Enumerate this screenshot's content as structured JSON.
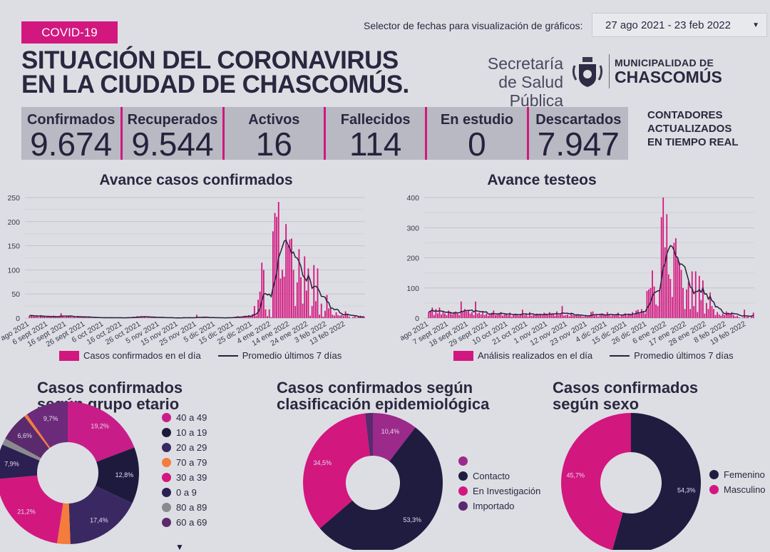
{
  "header": {
    "badge": "COVID-19",
    "title_line1": "SITUACIÓN DEL CORONAVIRUS",
    "title_line2": "EN LA CIUDAD DE CHASCOMÚS.",
    "date_selector_label": "Selector de fechas para visualización de gráficos:",
    "date_selector_value": "27 ago 2021 - 23 feb 2022",
    "secretaria_line1": "Secretaría",
    "secretaria_line2": "de Salud Pública",
    "muni_line1": "MUNICIPALIDAD DE",
    "muni_line2": "CHASCOMÚS"
  },
  "kpis": [
    {
      "label": "Confirmados",
      "value": "9.674"
    },
    {
      "label": "Recuperados",
      "value": "9.544"
    },
    {
      "label": "Activos",
      "value": "16"
    },
    {
      "label": "Fallecidos",
      "value": "114"
    },
    {
      "label": "En estudio",
      "value": "0"
    },
    {
      "label": "Descartados",
      "value": "7.947"
    }
  ],
  "counters_note": [
    "CONTADORES",
    "ACTUALIZADOS",
    "EN TIEMPO REAL"
  ],
  "colors": {
    "magenta": "#d2177f",
    "navy": "#1f1c40",
    "background": "#dddee3"
  },
  "chart_data": [
    {
      "type": "bar",
      "title": "Avance casos confirmados",
      "x_start": "27 ago 2021",
      "x_end": "23 feb 2022",
      "ylim": [
        0,
        250
      ],
      "yticks": [
        0,
        50,
        100,
        150,
        200,
        250
      ],
      "grid": true,
      "xtick_labels": [
        "ago 2021",
        "6 sept 2021",
        "16 sept 2021",
        "26 sept 2021",
        "6 oct 2021",
        "16 oct 2021",
        "26 oct 2021",
        "5 nov 2021",
        "15 nov 2021",
        "25 nov 2021",
        "5 dic 2021",
        "15 dic 2021",
        "25 dic 2021",
        "4 ene 2022",
        "14 ene 2022",
        "24 ene 2022",
        "3 feb 2022",
        "13 feb 2022"
      ],
      "xtick_step_days": 10,
      "legend": [
        "Casos confirmados en el día",
        "Promedio últimos 7 días"
      ],
      "legend_position": "bottom",
      "values": [
        5,
        6,
        4,
        3,
        5,
        2,
        6,
        4,
        3,
        2,
        4,
        3,
        2,
        5,
        3,
        2,
        4,
        10,
        3,
        2,
        4,
        3,
        5,
        2,
        3,
        1,
        4,
        2,
        3,
        2,
        3,
        1,
        2,
        1,
        0,
        1,
        2,
        0,
        1,
        1,
        0,
        1,
        0,
        2,
        1,
        0,
        1,
        0,
        1,
        1,
        0,
        1,
        0,
        2,
        1,
        1,
        3,
        2,
        4,
        3,
        4,
        2,
        3,
        1,
        2,
        1,
        3,
        2,
        1,
        0,
        1,
        2,
        1,
        0,
        1,
        1,
        0,
        1,
        0,
        0,
        1,
        0,
        1,
        2,
        1,
        0,
        1,
        0,
        0,
        1,
        7,
        1,
        0,
        2,
        1,
        1,
        0,
        1,
        2,
        0,
        1,
        1,
        0,
        0,
        1,
        0,
        1,
        2,
        1,
        1,
        2,
        3,
        4,
        2,
        3,
        4,
        5,
        4,
        6,
        3,
        8,
        25,
        5,
        38,
        55,
        115,
        100,
        18,
        4,
        18,
        2,
        180,
        218,
        210,
        241,
        82,
        100,
        86,
        195,
        150,
        163,
        165,
        100,
        25,
        74,
        143,
        85,
        30,
        128,
        57,
        103,
        5,
        25,
        110,
        35,
        103,
        7,
        30,
        3,
        15,
        48,
        20,
        22,
        7,
        5,
        12,
        6,
        5,
        7,
        4,
        14,
        8,
        3,
        0,
        2,
        4,
        1,
        3,
        5,
        2,
        3
      ]
    },
    {
      "type": "bar",
      "title": "Avance testeos",
      "x_start": "27 ago 2021",
      "x_end": "23 feb 2022",
      "ylim": [
        0,
        400
      ],
      "yticks": [
        0,
        100,
        200,
        300,
        400
      ],
      "grid": true,
      "xtick_labels": [
        "ago 2021",
        "7 sept 2021",
        "18 sept 2021",
        "29 sept 2021",
        "10 oct 2021",
        "21 oct 2021",
        "1 nov 2021",
        "12 nov 2021",
        "23 nov 2021",
        "4 dic 2021",
        "15 dic 2021",
        "26 dic 2021",
        "6 ene 2022",
        "17 ene 2022",
        "28 ene 2022",
        "8 feb 2022",
        "19 feb 2022"
      ],
      "xtick_step_days": 11,
      "legend": [
        "Análisis realizados en el día",
        "Promedio últimos 7 días"
      ],
      "legend_position": "bottom",
      "values": [
        20,
        25,
        35,
        10,
        30,
        15,
        35,
        12,
        20,
        15,
        10,
        25,
        18,
        12,
        20,
        22,
        15,
        10,
        55,
        20,
        30,
        22,
        25,
        15,
        20,
        10,
        55,
        15,
        18,
        12,
        20,
        10,
        15,
        8,
        12,
        18,
        25,
        10,
        12,
        15,
        20,
        8,
        12,
        15,
        10,
        18,
        5,
        12,
        15,
        10,
        8,
        14,
        28,
        10,
        12,
        6,
        20,
        8,
        10,
        12,
        15,
        10,
        12,
        8,
        18,
        14,
        10,
        20,
        12,
        15,
        8,
        22,
        10,
        12,
        40,
        8,
        10,
        12,
        6,
        18,
        10,
        8,
        12,
        10,
        8,
        6,
        4,
        10,
        5,
        8,
        20,
        22,
        8,
        10,
        5,
        12,
        15,
        10,
        8,
        20,
        12,
        6,
        10,
        8,
        14,
        18,
        5,
        10,
        12,
        16,
        8,
        15,
        12,
        20,
        10,
        25,
        28,
        15,
        30,
        22,
        15,
        90,
        95,
        100,
        158,
        105,
        45,
        40,
        95,
        335,
        400,
        235,
        345,
        145,
        130,
        70,
        250,
        265,
        200,
        185,
        160,
        100,
        30,
        95,
        120,
        30,
        155,
        40,
        155,
        20,
        140,
        60,
        125,
        15,
        50,
        30,
        85,
        40,
        30,
        10,
        20,
        12,
        8,
        15,
        10,
        22,
        18,
        12,
        20,
        10,
        5,
        8,
        3,
        0,
        2,
        28,
        3,
        5,
        0,
        8,
        18
      ]
    },
    {
      "type": "pie",
      "title": "Casos confirmados según grupo etario",
      "slices": [
        {
          "label": "40 a 49",
          "value": 19.2,
          "text": "19,2%",
          "color": "#c81d88"
        },
        {
          "label": "10 a 19",
          "value": 12.8,
          "text": "12,8%",
          "color": "#1e1a3e"
        },
        {
          "label": "20 a 29",
          "value": 17.4,
          "text": "17,4%",
          "color": "#3a2862"
        },
        {
          "label": "70 a 79",
          "value": 3.0,
          "text": "",
          "color": "#f47c3c"
        },
        {
          "label": "30 a 39",
          "value": 21.2,
          "text": "21,2%",
          "color": "#d2177f"
        },
        {
          "label": "0 a 9",
          "value": 7.9,
          "text": "7,9%",
          "color": "#2c1f52"
        },
        {
          "label": "80 a 89",
          "value": 1.5,
          "text": "",
          "color": "#8a8a8e"
        },
        {
          "label": "60 a 69",
          "value": 6.6,
          "text": "6,6%",
          "color": "#5a2a6c"
        },
        {
          "label": "",
          "value": 0.7,
          "text": "",
          "color": "#f47c3c"
        },
        {
          "label": "",
          "value": 9.7,
          "text": "9,7%",
          "color": "#6b2b7a"
        }
      ]
    },
    {
      "type": "pie",
      "title": "Casos confirmados según clasificación epidemiológica",
      "slices": [
        {
          "label": "",
          "value": 10.4,
          "text": "10,4%",
          "color": "#9c2a8a"
        },
        {
          "label": "Contacto",
          "value": 53.3,
          "text": "53,3%",
          "color": "#1f1c40"
        },
        {
          "label": "En Investigación",
          "value": 34.5,
          "text": "34,5%",
          "color": "#d2177f"
        },
        {
          "label": "Importado",
          "value": 1.8,
          "text": "",
          "color": "#5a2a6e"
        }
      ]
    },
    {
      "type": "pie",
      "title": "Casos confirmados según sexo",
      "slices": [
        {
          "label": "Femenino",
          "value": 54.3,
          "text": "54,3%",
          "color": "#1f1c40"
        },
        {
          "label": "Masculino",
          "value": 45.7,
          "text": "45,7%",
          "color": "#d2177f"
        }
      ]
    }
  ],
  "titles": {
    "age_line1": "Casos confirmados",
    "age_line2": "según grupo etario",
    "epi_line1": "Casos confirmados según",
    "epi_line2": "clasificación epidemiológica",
    "sex_line1": "Casos confirmados",
    "sex_line2": "según sexo"
  }
}
